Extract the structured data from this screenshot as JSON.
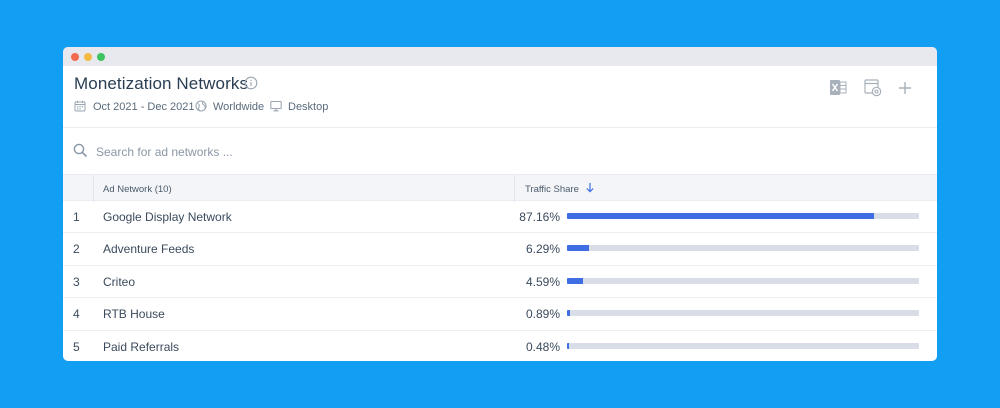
{
  "widget": {
    "title": "Monetization Networks",
    "date_range": "Oct 2021 - Dec 2021",
    "region": "Worldwide",
    "device": "Desktop"
  },
  "search": {
    "placeholder": "Search for ad networks ..."
  },
  "table": {
    "col_network": "Ad Network (10)",
    "col_share": "Traffic Share",
    "rows": [
      {
        "rank": "1",
        "name": "Google Display Network",
        "share_label": "87.16%",
        "share": 0.8716
      },
      {
        "rank": "2",
        "name": "Adventure Feeds",
        "share_label": "6.29%",
        "share": 0.0629
      },
      {
        "rank": "3",
        "name": "Criteo",
        "share_label": "4.59%",
        "share": 0.0459
      },
      {
        "rank": "4",
        "name": "RTB House",
        "share_label": "0.89%",
        "share": 0.0089
      },
      {
        "rank": "5",
        "name": "Paid Referrals",
        "share_label": "0.48%",
        "share": 0.0048
      }
    ]
  },
  "colors": {
    "background": "#129ef2",
    "bar_fill": "#3f6de3",
    "bar_track": "#d8dde8"
  },
  "icons": {
    "info": "info-icon",
    "calendar": "calendar-icon",
    "globe": "globe-icon",
    "desktop": "desktop-icon",
    "excel": "excel-export-icon",
    "settings": "dashboard-settings-icon",
    "add": "plus-icon",
    "search": "search-icon",
    "sort": "sort-desc-icon"
  }
}
